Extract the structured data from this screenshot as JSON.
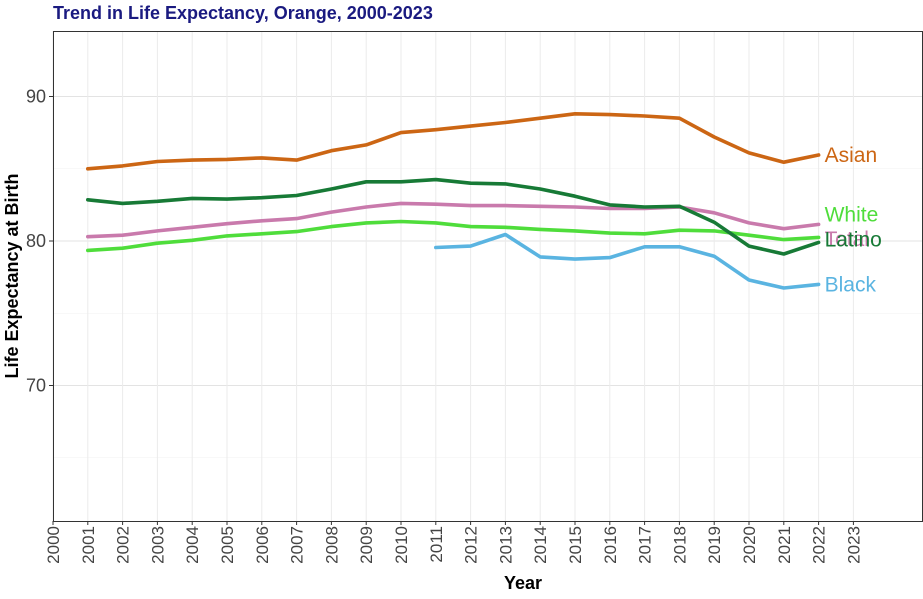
{
  "chart_data": {
    "type": "line",
    "title": "Trend in Life Expectancy, Orange, 2000-2023",
    "xlabel": "Year",
    "ylabel": "Life Expectancy at Birth",
    "xlim": [
      2000,
      2023
    ],
    "ylim": [
      60.5,
      94.5
    ],
    "x_ticks": [
      2000,
      2001,
      2002,
      2003,
      2004,
      2005,
      2006,
      2007,
      2008,
      2009,
      2010,
      2011,
      2012,
      2013,
      2014,
      2015,
      2016,
      2017,
      2018,
      2019,
      2020,
      2021,
      2022,
      2023
    ],
    "y_ticks": [
      70,
      80,
      90
    ],
    "grid": true,
    "legend": "direct labels at line ends",
    "series": [
      {
        "name": "Asian",
        "color": "#cc6614",
        "x": [
          2001,
          2002,
          2003,
          2004,
          2005,
          2006,
          2007,
          2008,
          2009,
          2010,
          2011,
          2012,
          2013,
          2014,
          2015,
          2016,
          2017,
          2018,
          2019,
          2020,
          2021,
          2022
        ],
        "values": [
          85.0,
          85.2,
          85.5,
          85.6,
          85.65,
          85.75,
          85.6,
          86.25,
          86.65,
          87.5,
          87.7,
          87.95,
          88.2,
          88.5,
          88.8,
          88.75,
          88.65,
          88.5,
          87.2,
          86.1,
          85.45,
          85.95
        ]
      },
      {
        "name": "Total",
        "color": "#c97aac",
        "x": [
          2001,
          2002,
          2003,
          2004,
          2005,
          2006,
          2007,
          2008,
          2009,
          2010,
          2011,
          2012,
          2013,
          2014,
          2015,
          2016,
          2017,
          2018,
          2019,
          2020,
          2021,
          2022
        ],
        "values": [
          80.3,
          80.4,
          80.7,
          80.95,
          81.2,
          81.4,
          81.55,
          82.0,
          82.35,
          82.6,
          82.55,
          82.45,
          82.45,
          82.4,
          82.35,
          82.25,
          82.25,
          82.35,
          81.95,
          81.25,
          80.85,
          81.15
        ]
      },
      {
        "name": "White",
        "color": "#4fdd3b",
        "x": [
          2001,
          2002,
          2003,
          2004,
          2005,
          2006,
          2007,
          2008,
          2009,
          2010,
          2011,
          2012,
          2013,
          2014,
          2015,
          2016,
          2017,
          2018,
          2019,
          2020,
          2021,
          2022
        ],
        "values": [
          79.35,
          79.5,
          79.85,
          80.05,
          80.35,
          80.5,
          80.65,
          81.0,
          81.25,
          81.35,
          81.25,
          81.0,
          80.95,
          80.8,
          80.7,
          80.55,
          80.5,
          80.75,
          80.7,
          80.4,
          80.1,
          80.25
        ]
      },
      {
        "name": "Latino",
        "color": "#177a36",
        "x": [
          2001,
          2002,
          2003,
          2004,
          2005,
          2006,
          2007,
          2008,
          2009,
          2010,
          2011,
          2012,
          2013,
          2014,
          2015,
          2016,
          2017,
          2018,
          2019,
          2020,
          2021,
          2022
        ],
        "values": [
          82.85,
          82.6,
          82.75,
          82.95,
          82.9,
          83.0,
          83.15,
          83.6,
          84.1,
          84.1,
          84.25,
          84.0,
          83.95,
          83.6,
          83.1,
          82.5,
          82.35,
          82.4,
          81.3,
          79.65,
          79.1,
          79.9
        ]
      },
      {
        "name": "Black",
        "color": "#5ab4e1",
        "x": [
          2011,
          2012,
          2013,
          2014,
          2015,
          2016,
          2017,
          2018,
          2019,
          2020,
          2021,
          2022
        ],
        "values": [
          79.55,
          79.65,
          80.45,
          78.9,
          78.75,
          78.85,
          79.6,
          79.6,
          78.95,
          77.3,
          76.75,
          77.0
        ]
      }
    ]
  }
}
